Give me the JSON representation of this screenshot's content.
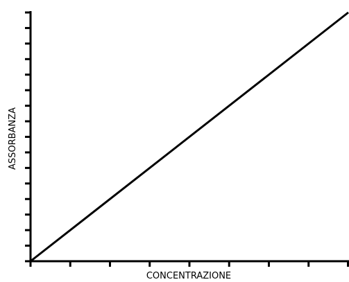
{
  "chart_data": {
    "type": "line",
    "x_label": "CONCENTRAZIONE",
    "y_label": "ASSORBANZA",
    "x": [
      0,
      8
    ],
    "values": [
      0,
      16
    ],
    "color": "#000000",
    "xlim": [
      0,
      8
    ],
    "ylim": [
      0,
      16
    ],
    "xticks": [
      0,
      1,
      2,
      3,
      4,
      5,
      6,
      7,
      8
    ],
    "yticks": [
      0,
      1,
      2,
      3,
      4,
      5,
      6,
      7,
      8,
      9,
      10,
      11,
      12,
      13,
      14,
      15,
      16
    ]
  }
}
